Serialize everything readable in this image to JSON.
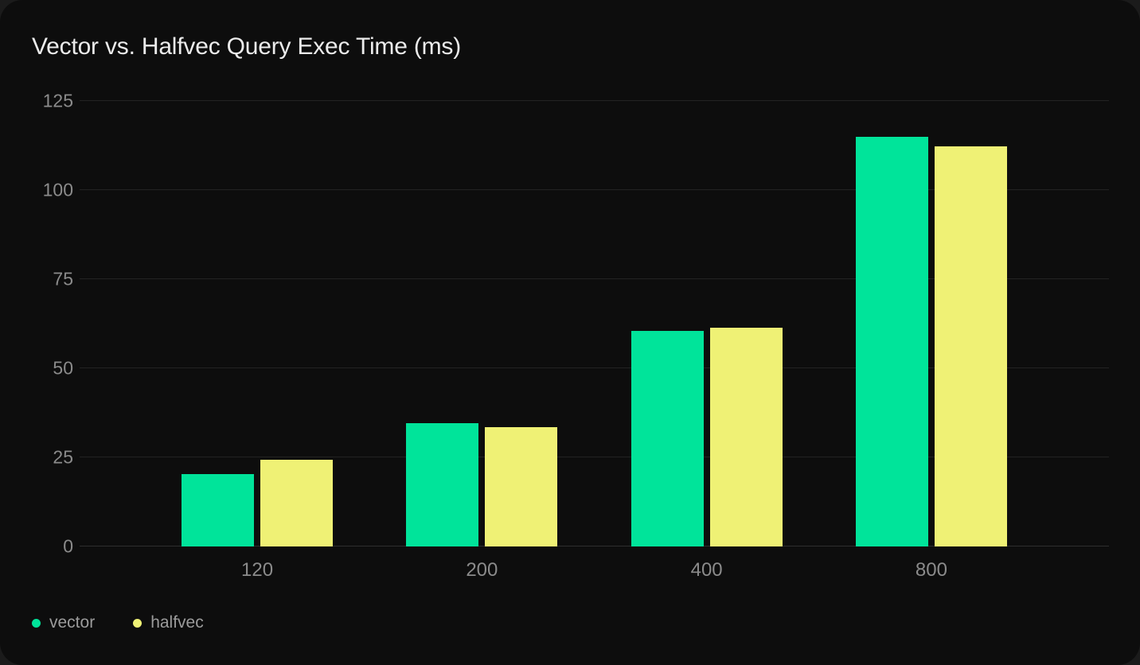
{
  "card": {
    "title": "Vector vs. Halfvec Query Exec Time (ms)"
  },
  "chart_data": {
    "type": "bar",
    "title": "Vector vs. Halfvec Query Exec Time (ms)",
    "categories": [
      "120",
      "200",
      "400",
      "800"
    ],
    "series": [
      {
        "name": "vector",
        "color": "#00E49A",
        "values": [
          20.4,
          34.6,
          60.6,
          114.9
        ]
      },
      {
        "name": "halfvec",
        "color": "#EFF175",
        "values": [
          24.3,
          33.5,
          61.4,
          112.3
        ]
      }
    ],
    "xlabel": "",
    "ylabel": "",
    "ylim": [
      0,
      125
    ],
    "yticks": [
      0,
      25,
      50,
      75,
      100,
      125
    ],
    "grid": true,
    "legend_position": "bottom-left"
  },
  "theme": {
    "card_background": "#0d0d0d",
    "page_background": "#1b1b1b",
    "grid_color": "#232323",
    "zero_line_color": "#2e2e2e",
    "tick_label_color": "#8b8b8b",
    "legend_label_color": "#9c9c9c",
    "title_color": "#ebebeb"
  }
}
